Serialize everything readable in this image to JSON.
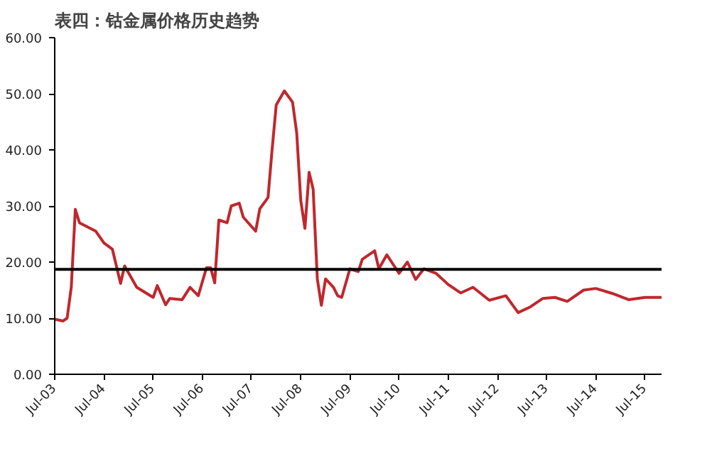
{
  "chart_data": {
    "type": "line",
    "title": "表四：钴金属价格历史趋势",
    "x": [
      "2003-07",
      "2003-09",
      "2003-10",
      "2003-11",
      "2003-12",
      "2004-01",
      "2004-05",
      "2004-07",
      "2004-09",
      "2004-11",
      "2004-12",
      "2005-03",
      "2005-07",
      "2005-08",
      "2005-10",
      "2005-11",
      "2006-02",
      "2006-04",
      "2006-06",
      "2006-08",
      "2006-09",
      "2006-10",
      "2006-11",
      "2007-01",
      "2007-02",
      "2007-04",
      "2007-05",
      "2007-08",
      "2007-09",
      "2007-11",
      "2007-12",
      "2008-01",
      "2008-03",
      "2008-05",
      "2008-06",
      "2008-07",
      "2008-08",
      "2008-09",
      "2008-10",
      "2008-11",
      "2008-12",
      "2009-01",
      "2009-03",
      "2009-04",
      "2009-05",
      "2009-07",
      "2009-09",
      "2009-10",
      "2010-01",
      "2010-02",
      "2010-04",
      "2010-07",
      "2010-09",
      "2010-11",
      "2011-01",
      "2011-04",
      "2011-07",
      "2011-10",
      "2012-01",
      "2012-05",
      "2012-09",
      "2012-12",
      "2013-03",
      "2013-06",
      "2013-09",
      "2013-12",
      "2014-04",
      "2014-07",
      "2014-11",
      "2015-03",
      "2015-07",
      "2015-11"
    ],
    "series": [
      {
        "color": "#c0272d",
        "values": [
          9.8,
          9.5,
          10,
          15.5,
          29.4,
          27,
          25.5,
          23.4,
          22.3,
          16.2,
          19.3,
          15.5,
          13.7,
          15.8,
          12.4,
          13.5,
          13.3,
          15.5,
          14,
          19,
          19,
          16.3,
          27.5,
          27,
          30,
          30.5,
          28,
          25.5,
          29.5,
          31.5,
          40,
          48,
          50.5,
          48.5,
          43,
          31,
          26,
          36,
          33,
          17,
          12.3,
          17,
          15.5,
          14,
          13.7,
          18.8,
          18.3,
          20.5,
          22,
          18.8,
          21.3,
          18,
          20,
          16.9,
          18.8,
          18,
          16,
          14.5,
          15.5,
          13.2,
          14,
          11,
          12,
          13.5,
          13.7,
          13,
          15,
          15.3,
          14.4,
          13.3,
          13.7,
          13.7
        ]
      }
    ],
    "xlim": [
      "2003-07",
      "2015-11"
    ],
    "xticks": [
      {
        "value": "2003-07",
        "label": "Jul-03"
      },
      {
        "value": "2004-07",
        "label": "Jul-04"
      },
      {
        "value": "2005-07",
        "label": "Jul-05"
      },
      {
        "value": "2006-07",
        "label": "Jul-06"
      },
      {
        "value": "2007-07",
        "label": "Jul-07"
      },
      {
        "value": "2008-07",
        "label": "Jul-08"
      },
      {
        "value": "2009-07",
        "label": "Jul-09"
      },
      {
        "value": "2010-07",
        "label": "Jul-10"
      },
      {
        "value": "2011-07",
        "label": "Jul-11"
      },
      {
        "value": "2012-07",
        "label": "Jul-12"
      },
      {
        "value": "2013-07",
        "label": "Jul-13"
      },
      {
        "value": "2014-07",
        "label": "Jul-14"
      },
      {
        "value": "2015-07",
        "label": "Jul-15"
      }
    ],
    "ylim": [
      0,
      60
    ],
    "yticks": [
      {
        "value": 0,
        "label": "0.00"
      },
      {
        "value": 10,
        "label": "10.00"
      },
      {
        "value": 20,
        "label": "20.00"
      },
      {
        "value": 30,
        "label": "30.00"
      },
      {
        "value": 40,
        "label": "40.00"
      },
      {
        "value": 50,
        "label": "50.00"
      },
      {
        "value": 60,
        "label": "60.00"
      }
    ],
    "ref_lines": [
      {
        "axis": "y",
        "value": 18.7,
        "color": "#000000"
      }
    ],
    "grid": false
  }
}
